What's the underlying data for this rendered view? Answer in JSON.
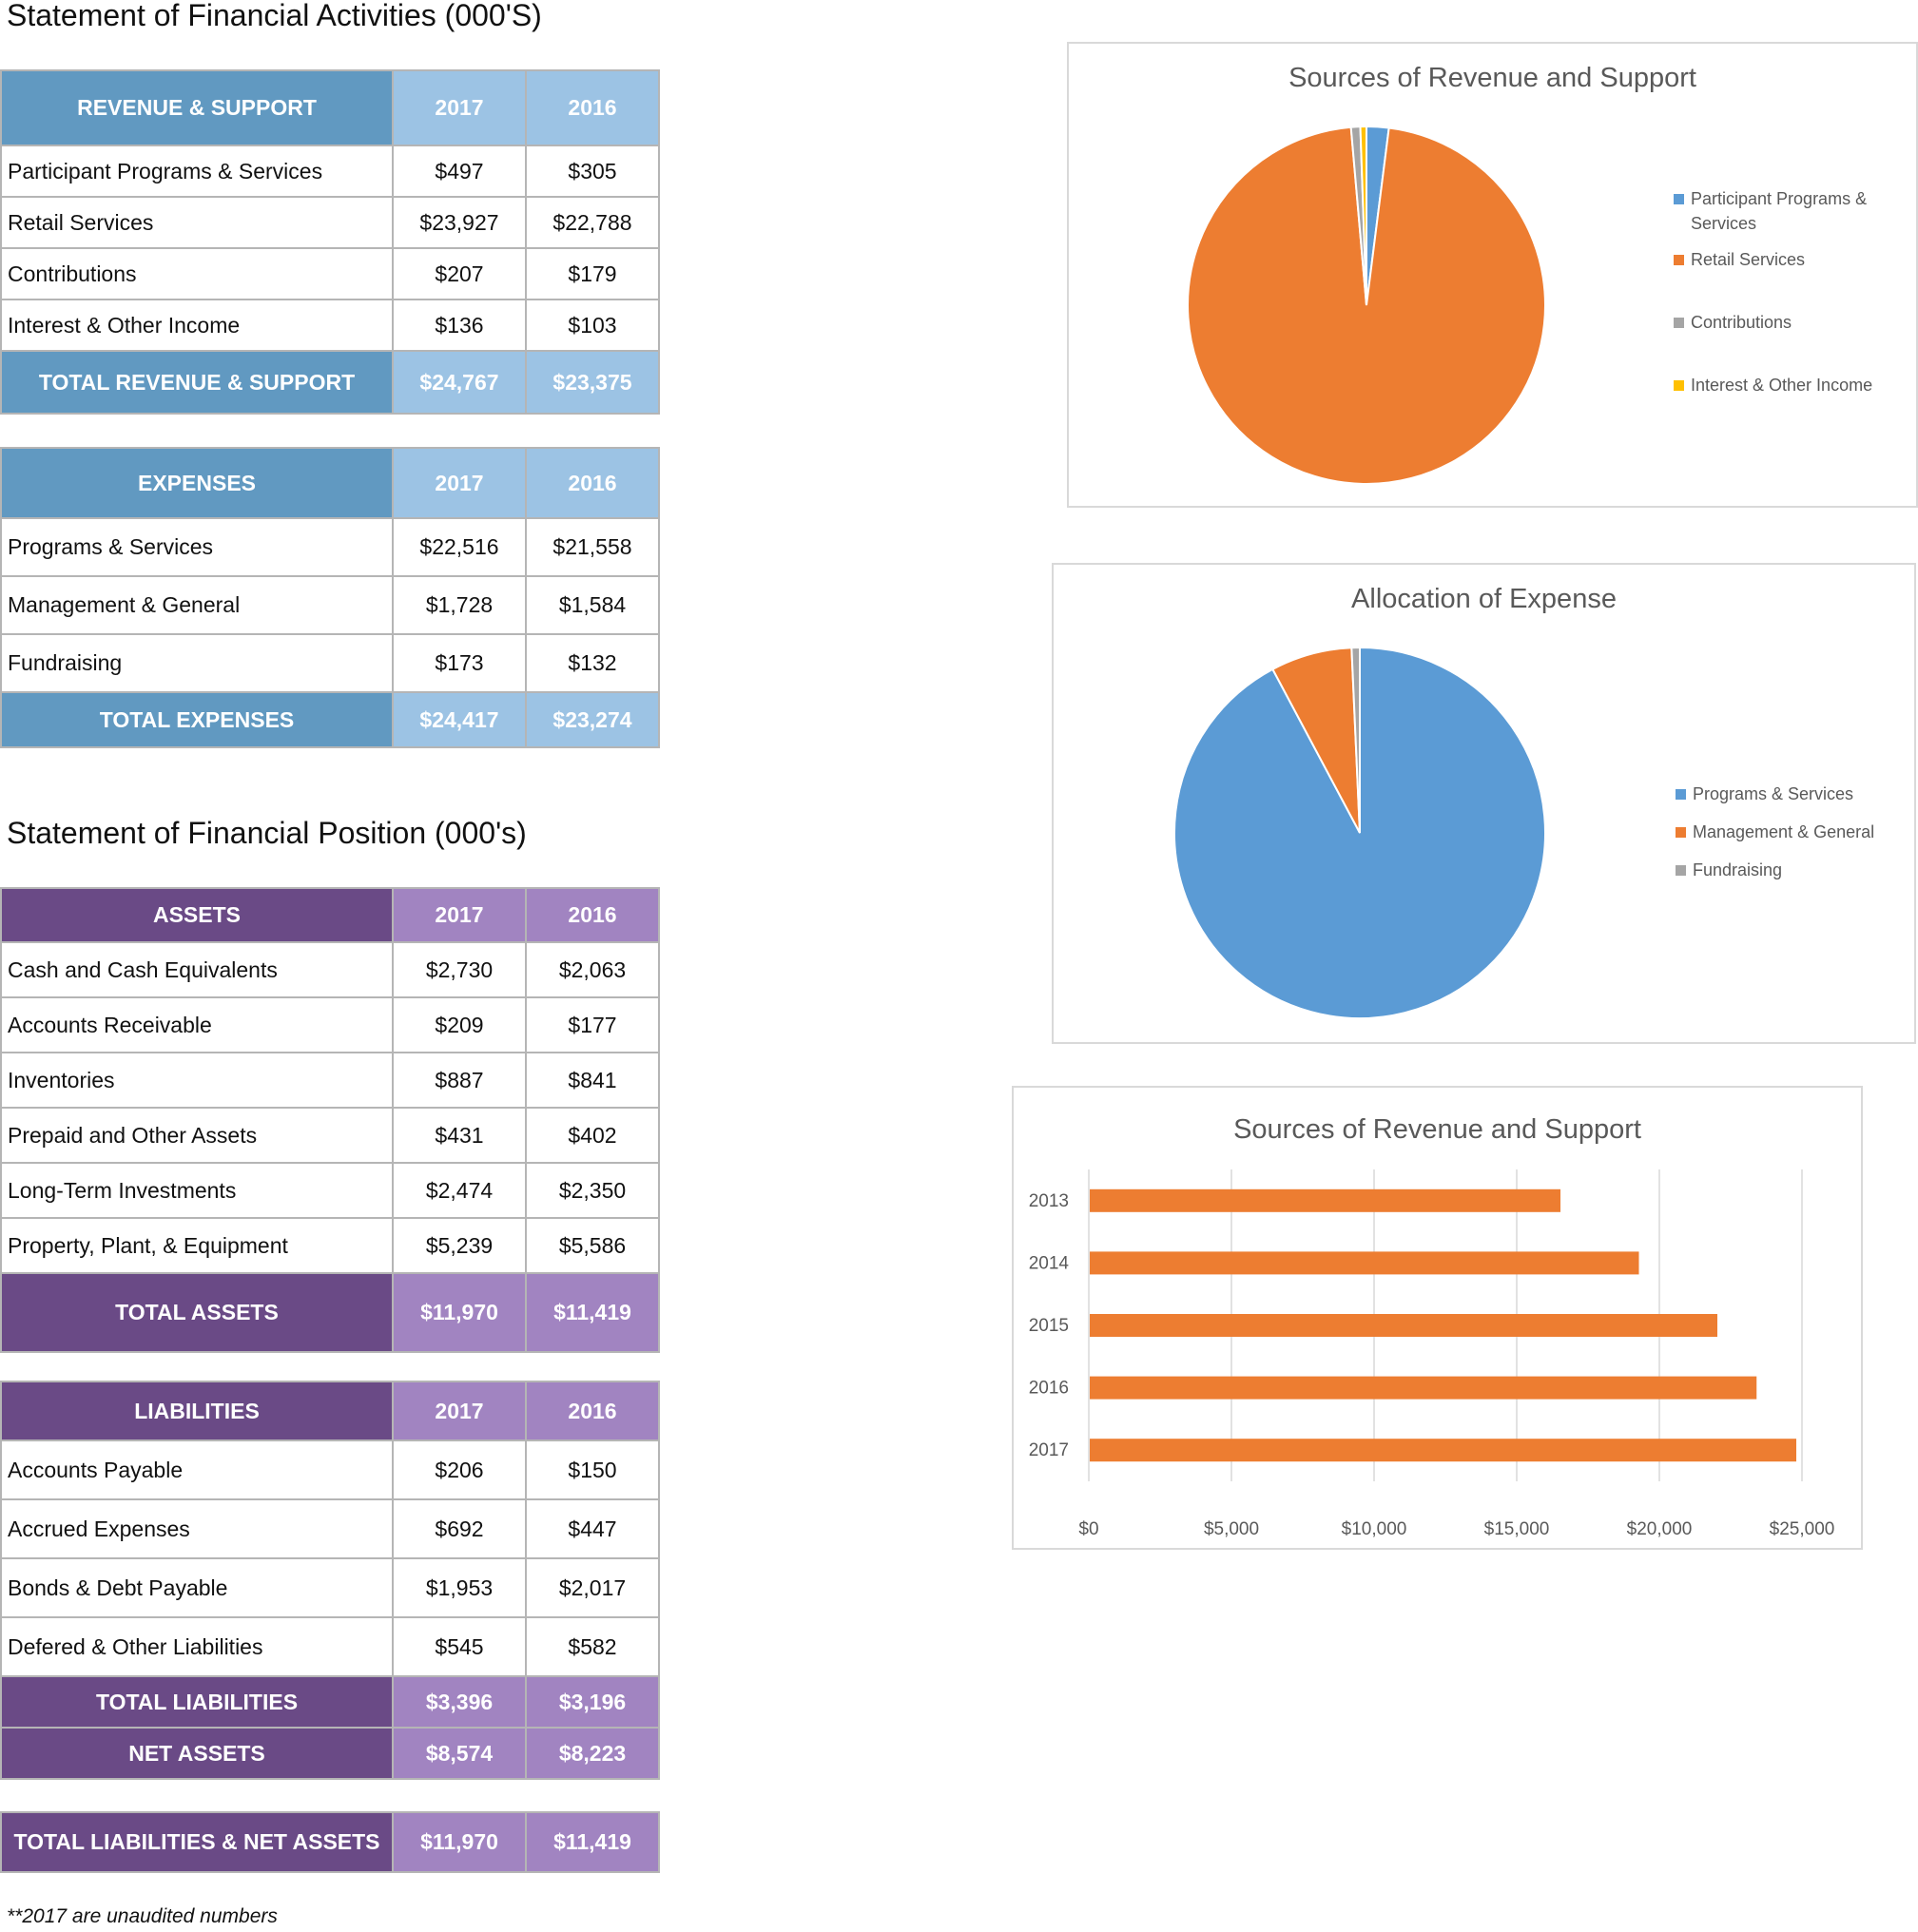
{
  "activities_title": "Statement of Financial Activities (000'S)",
  "position_title": "Statement of Financial Position (000's)",
  "revenue_table": {
    "header": [
      "REVENUE & SUPPORT",
      "2017",
      "2016"
    ],
    "rows": [
      [
        "Participant Programs & Services",
        "$497",
        "$305"
      ],
      [
        "Retail Services",
        "$23,927",
        "$22,788"
      ],
      [
        "Contributions",
        "$207",
        "$179"
      ],
      [
        "Interest & Other Income",
        "$136",
        "$103"
      ]
    ],
    "total": [
      "TOTAL REVENUE & SUPPORT",
      "$24,767",
      "$23,375"
    ]
  },
  "expenses_table": {
    "header": [
      "EXPENSES",
      "2017",
      "2016"
    ],
    "rows": [
      [
        "Programs & Services",
        "$22,516",
        "$21,558"
      ],
      [
        "Management & General",
        "$1,728",
        "$1,584"
      ],
      [
        "Fundraising",
        "$173",
        "$132"
      ]
    ],
    "total": [
      "TOTAL EXPENSES",
      "$24,417",
      "$23,274"
    ]
  },
  "assets_table": {
    "header": [
      "ASSETS",
      "2017",
      "2016"
    ],
    "rows": [
      [
        "Cash and Cash Equivalents",
        "$2,730",
        "$2,063"
      ],
      [
        "Accounts Receivable",
        "$209",
        "$177"
      ],
      [
        "Inventories",
        "$887",
        "$841"
      ],
      [
        "Prepaid and Other Assets",
        "$431",
        "$402"
      ],
      [
        "Long-Term Investments",
        "$2,474",
        "$2,350"
      ],
      [
        "Property, Plant, & Equipment",
        "$5,239",
        "$5,586"
      ]
    ],
    "total": [
      "TOTAL ASSETS",
      "$11,970",
      "$11,419"
    ]
  },
  "liabilities_table": {
    "header": [
      "LIABILITIES",
      "2017",
      "2016"
    ],
    "rows": [
      [
        "Accounts Payable",
        "$206",
        "$150"
      ],
      [
        "Accrued Expenses",
        "$692",
        "$447"
      ],
      [
        "Bonds & Debt Payable",
        "$1,953",
        "$2,017"
      ],
      [
        "Defered & Other Liabilities",
        "$545",
        "$582"
      ]
    ],
    "total": [
      "TOTAL LIABILITIES",
      "$3,396",
      "$3,196"
    ],
    "net": [
      "NET ASSETS",
      "$8,574",
      "$8,223"
    ]
  },
  "grand_total": [
    "TOTAL LIABILITIES & NET ASSETS",
    "$11,970",
    "$11,419"
  ],
  "footnote": "**2017 are unaudited numbers",
  "chart_data": [
    {
      "type": "pie",
      "title": "Sources of Revenue and Support",
      "categories": [
        "Participant Programs & Services",
        "Retail Services",
        "Contributions",
        "Interest & Other Income"
      ],
      "values": [
        497,
        23927,
        207,
        136
      ],
      "colors": [
        "#5b9bd5",
        "#ed7d31",
        "#a5a5a5",
        "#ffc000"
      ],
      "legend_position": "right"
    },
    {
      "type": "pie",
      "title": "Allocation of Expense",
      "categories": [
        "Programs & Services",
        "Management & General",
        "Fundraising"
      ],
      "values": [
        22516,
        1728,
        173
      ],
      "colors": [
        "#5b9bd5",
        "#ed7d31",
        "#a5a5a5"
      ],
      "legend_position": "right"
    },
    {
      "type": "bar",
      "orientation": "horizontal",
      "title": "Sources of Revenue and Support",
      "categories": [
        "2013",
        "2014",
        "2015",
        "2016",
        "2017"
      ],
      "values": [
        16500,
        19250,
        22000,
        23375,
        24767
      ],
      "color": "#ed7d31",
      "xlim": [
        0,
        25000
      ],
      "xticks": [
        "$0",
        "$5,000",
        "$10,000",
        "$15,000",
        "$20,000",
        "$25,000"
      ],
      "grid": true
    }
  ]
}
